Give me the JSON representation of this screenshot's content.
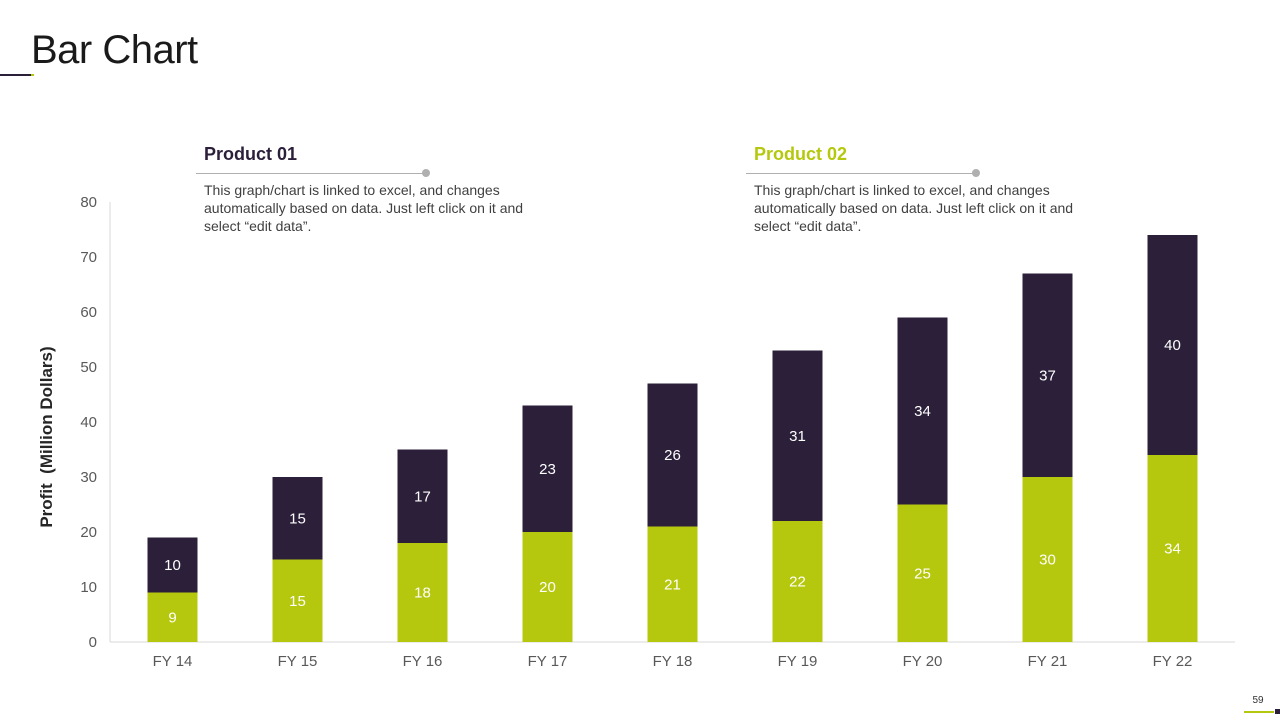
{
  "slide": {
    "title": "Bar Chart",
    "page_number": "59"
  },
  "legend": [
    {
      "heading": "Product 01",
      "color": "#2b1f3a",
      "description": "This graph/chart is linked to excel, and changes automatically based on data. Just left click on it and select “edit data”."
    },
    {
      "heading": "Product 02",
      "color": "#b5c80e",
      "description": "This graph/chart is linked to excel, and changes automatically based on data. Just left click on it and select “edit data”."
    }
  ],
  "chart_data": {
    "type": "bar",
    "stacked": true,
    "title": "",
    "xlabel": "",
    "ylabel": "Profit  (Million Dollars)",
    "ylim": [
      0,
      80
    ],
    "yticks": [
      0,
      10,
      20,
      30,
      40,
      50,
      60,
      70,
      80
    ],
    "grid": false,
    "categories": [
      "FY 14",
      "FY 15",
      "FY 16",
      "FY 17",
      "FY 18",
      "FY 19",
      "FY 20",
      "FY 21",
      "FY 22"
    ],
    "series": [
      {
        "name": "Product 02",
        "color": "#b5c80e",
        "values": [
          9,
          15,
          18,
          20,
          21,
          22,
          25,
          30,
          34
        ]
      },
      {
        "name": "Product 01",
        "color": "#2b1f3a",
        "values": [
          10,
          15,
          17,
          23,
          26,
          31,
          34,
          37,
          40
        ]
      }
    ]
  }
}
